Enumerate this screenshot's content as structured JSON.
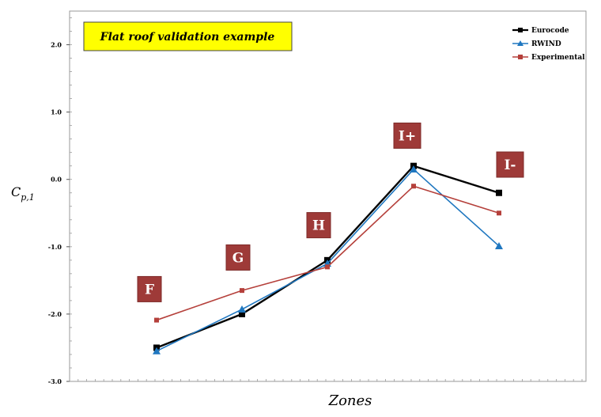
{
  "chart_data": {
    "type": "line",
    "title": "Flat roof validation example",
    "xlabel": "Zones",
    "ylabel": "C",
    "ylabel_subscript": "p,1",
    "ylim": [
      -3.0,
      2.5
    ],
    "yticks": [
      "2.0",
      "1.0",
      "0.0",
      "-1.0",
      "-2.0",
      "-3.0"
    ],
    "ytick_values": [
      2.0,
      1.0,
      0.0,
      -1.0,
      -2.0,
      -3.0
    ],
    "categories": [
      "F",
      "G",
      "H",
      "I+",
      "I-"
    ],
    "legend_position": "top-right",
    "grid": false,
    "series": [
      {
        "name": "Eurocode",
        "color": "#000000",
        "marker": "square",
        "values": [
          -2.5,
          -2.0,
          -1.2,
          0.2,
          -0.2
        ]
      },
      {
        "name": "RWIND",
        "color": "#1f77c0",
        "marker": "triangle",
        "values": [
          -2.55,
          -1.93,
          -1.25,
          0.15,
          -0.99
        ]
      },
      {
        "name": "Experimental",
        "color": "#b5403b",
        "marker": "square",
        "values": [
          -2.09,
          -1.65,
          -1.3,
          -0.1,
          -0.5
        ]
      }
    ],
    "zone_labels": [
      {
        "text": "F",
        "value": -1.63
      },
      {
        "text": "G",
        "value": -1.16
      },
      {
        "text": "H",
        "value": -0.68
      },
      {
        "text": "I+",
        "value": 0.65
      },
      {
        "text": "I-",
        "value": 0.22
      }
    ],
    "colors": {
      "zone_box": "#9e3a38",
      "title_box": "#ffff00"
    }
  }
}
